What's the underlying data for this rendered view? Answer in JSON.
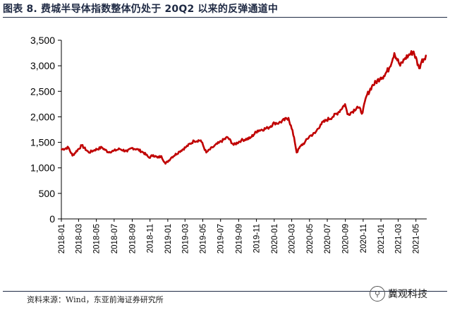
{
  "title": "图表 8.   费城半导体指数整体仍处于 20Q2 以来的反弹通道中",
  "source": "资料来源：Wind，东亚前海证券研究所",
  "watermark": {
    "text": "冀观科技",
    "icon": "wechat-search-icon"
  },
  "colors": {
    "line": "#c00000",
    "title": "#1f2a44"
  },
  "chart_data": {
    "type": "line",
    "title": "",
    "xlabel": "",
    "ylabel": "",
    "ylim": [
      0,
      3500
    ],
    "yticks": [
      0,
      500,
      1000,
      1500,
      2000,
      2500,
      3000,
      3500
    ],
    "ytick_labels": [
      "0",
      "500",
      "1,000",
      "1,500",
      "2,000",
      "2,500",
      "3,000",
      "3,500"
    ],
    "xticks": [
      "2018-01",
      "2018-03",
      "2018-05",
      "2018-07",
      "2018-09",
      "2018-11",
      "2019-01",
      "2019-03",
      "2019-05",
      "2019-07",
      "2019-09",
      "2019-11",
      "2020-01",
      "2020-03",
      "2020-05",
      "2020-07",
      "2020-09",
      "2020-11",
      "2021-01",
      "2021-03",
      "2021-05"
    ],
    "grid": false,
    "legend": "none",
    "series": [
      {
        "name": "",
        "x": [
          "2018-01-02",
          "2018-01-25",
          "2018-02-08",
          "2018-03-12",
          "2018-04-05",
          "2018-04-25",
          "2018-05-20",
          "2018-06-10",
          "2018-06-28",
          "2018-07-20",
          "2018-08-15",
          "2018-08-31",
          "2018-09-20",
          "2018-10-10",
          "2018-10-29",
          "2018-11-12",
          "2018-11-27",
          "2018-12-10",
          "2018-12-24",
          "2019-01-15",
          "2019-02-10",
          "2019-03-05",
          "2019-04-01",
          "2019-04-24",
          "2019-05-13",
          "2019-06-03",
          "2019-06-25",
          "2019-07-25",
          "2019-08-15",
          "2019-09-10",
          "2019-10-10",
          "2019-11-05",
          "2019-12-10",
          "2020-01-02",
          "2020-01-17",
          "2020-02-19",
          "2020-03-09",
          "2020-03-18",
          "2020-04-01",
          "2020-04-15",
          "2020-05-01",
          "2020-05-20",
          "2020-06-08",
          "2020-06-29",
          "2020-07-20",
          "2020-08-10",
          "2020-08-31",
          "2020-09-08",
          "2020-09-25",
          "2020-10-12",
          "2020-10-30",
          "2020-11-12",
          "2020-12-01",
          "2020-12-31",
          "2021-01-11",
          "2021-01-29",
          "2021-02-16",
          "2021-03-08",
          "2021-03-25",
          "2021-04-05",
          "2021-04-23",
          "2021-05-12",
          "2021-05-20",
          "2021-06-04"
        ],
        "values": [
          1360,
          1400,
          1240,
          1440,
          1300,
          1350,
          1400,
          1310,
          1330,
          1370,
          1320,
          1390,
          1360,
          1300,
          1200,
          1250,
          1200,
          1230,
          1080,
          1210,
          1320,
          1410,
          1530,
          1540,
          1300,
          1400,
          1490,
          1600,
          1450,
          1540,
          1580,
          1730,
          1780,
          1880,
          1880,
          1980,
          1600,
          1300,
          1430,
          1500,
          1620,
          1680,
          1850,
          1940,
          2000,
          2100,
          2250,
          2050,
          2100,
          2200,
          2080,
          2400,
          2600,
          2770,
          2800,
          2950,
          3250,
          3000,
          3150,
          3200,
          3280,
          2950,
          3080,
          3200
        ]
      }
    ]
  }
}
